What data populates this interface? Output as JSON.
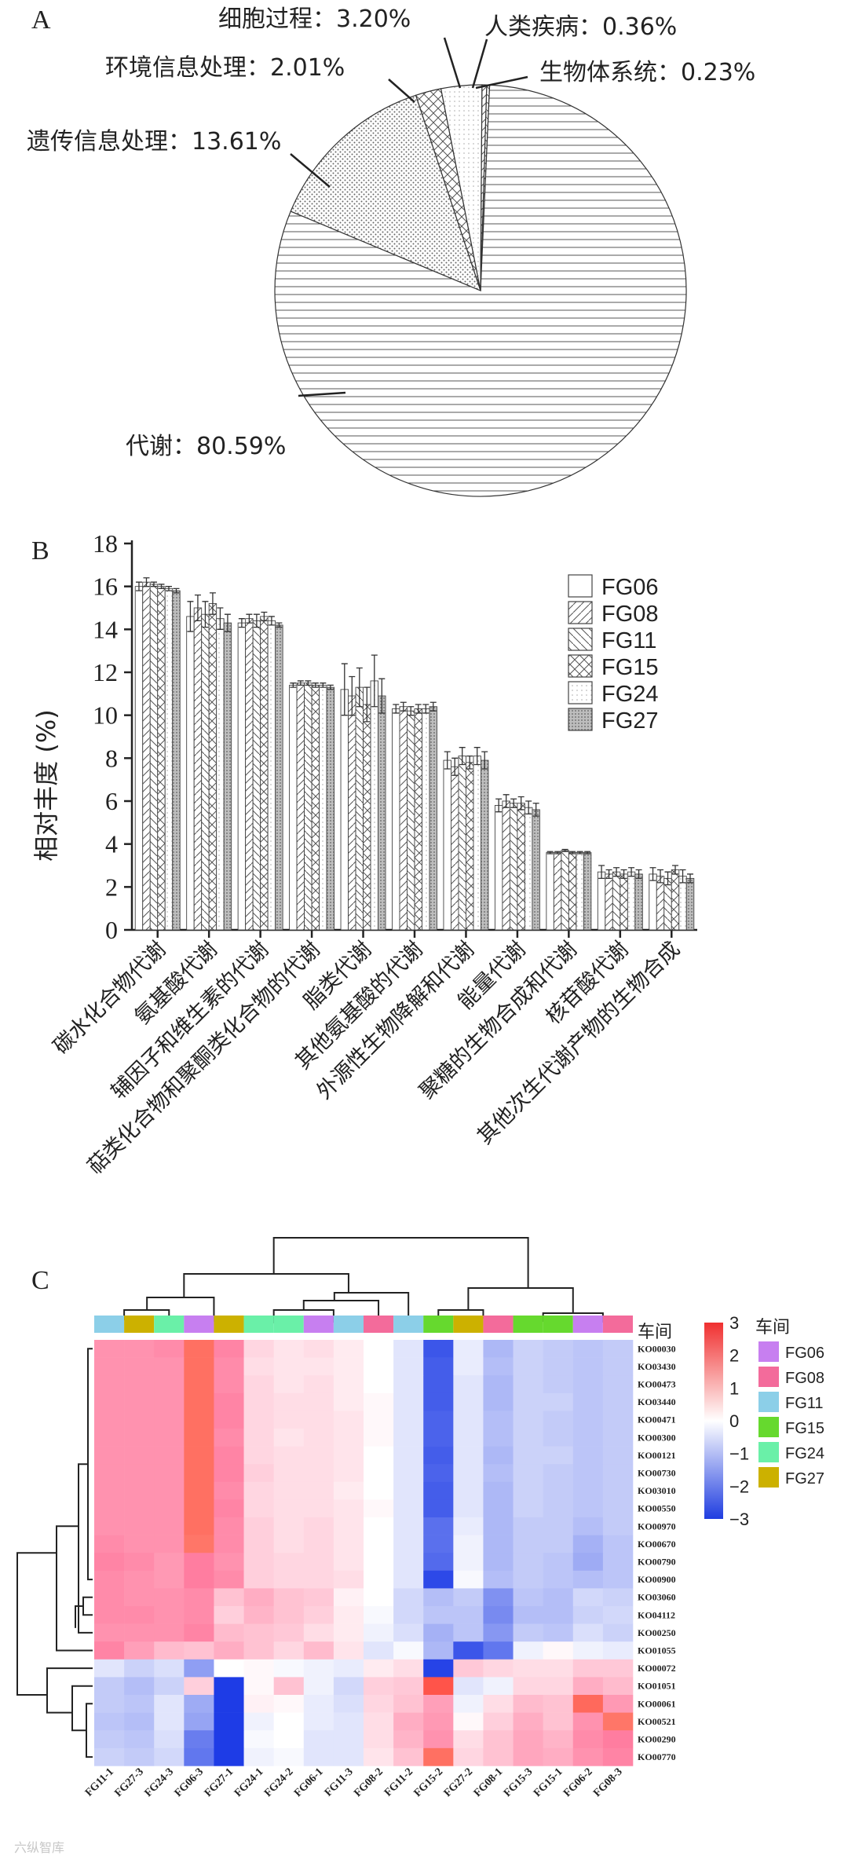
{
  "panels": {
    "a_label": "A",
    "b_label": "B",
    "c_label": "C"
  },
  "chart_data": [
    {
      "type": "pie",
      "labels": [
        "代谢",
        "遗传信息处理",
        "环境信息处理",
        "细胞过程",
        "人类疾病",
        "生物体系统"
      ],
      "values": [
        80.59,
        13.61,
        2.01,
        3.2,
        0.36,
        0.23
      ],
      "display_labels": [
        "代谢：80.59%",
        "遗传信息处理：13.61%",
        "环境信息处理：2.01%",
        "细胞过程：3.20%",
        "人类疾病：0.36%",
        "生物体系统：0.23%"
      ]
    },
    {
      "type": "bar",
      "categories": [
        "碳水化合物代谢",
        "氨基酸代谢",
        "辅因子和维生素的代谢",
        "萜类化合物和聚酮类化合物的代谢",
        "脂类代谢",
        "其他氨基酸的代谢",
        "外源性生物降解和代谢",
        "能量代谢",
        "聚糖的生物合成和代谢",
        "核苷酸代谢",
        "其他次生代谢产物的生物合成"
      ],
      "series": [
        {
          "name": "FG06",
          "values": [
            16.0,
            14.6,
            14.3,
            11.4,
            11.2,
            10.3,
            7.9,
            5.8,
            3.6,
            2.7,
            2.6
          ]
        },
        {
          "name": "FG08",
          "values": [
            16.2,
            15.0,
            14.5,
            11.5,
            10.9,
            10.4,
            7.6,
            6.0,
            3.6,
            2.6,
            2.5
          ]
        },
        {
          "name": "FG11",
          "values": [
            16.1,
            14.7,
            14.4,
            11.5,
            11.3,
            10.2,
            8.1,
            5.9,
            3.7,
            2.7,
            2.4
          ]
        },
        {
          "name": "FG15",
          "values": [
            16.0,
            15.2,
            14.6,
            11.4,
            10.5,
            10.3,
            7.8,
            5.9,
            3.6,
            2.6,
            2.8
          ]
        },
        {
          "name": "FG24",
          "values": [
            15.9,
            14.5,
            14.4,
            11.4,
            11.6,
            10.3,
            8.1,
            5.7,
            3.6,
            2.7,
            2.5
          ]
        },
        {
          "name": "FG27",
          "values": [
            15.8,
            14.3,
            14.2,
            11.3,
            10.9,
            10.4,
            7.9,
            5.6,
            3.6,
            2.6,
            2.4
          ]
        }
      ],
      "errors": [
        [
          0.2,
          0.7,
          0.2,
          0.1,
          1.2,
          0.2,
          0.4,
          0.3,
          0.05,
          0.3,
          0.3
        ],
        [
          0.2,
          0.6,
          0.2,
          0.1,
          0.9,
          0.2,
          0.4,
          0.3,
          0.05,
          0.2,
          0.3
        ],
        [
          0.1,
          0.6,
          0.3,
          0.1,
          0.9,
          0.2,
          0.4,
          0.2,
          0.05,
          0.2,
          0.3
        ],
        [
          0.1,
          0.5,
          0.2,
          0.1,
          0.8,
          0.2,
          0.3,
          0.3,
          0.05,
          0.2,
          0.2
        ],
        [
          0.1,
          0.5,
          0.2,
          0.1,
          1.2,
          0.2,
          0.4,
          0.3,
          0.05,
          0.2,
          0.3
        ],
        [
          0.1,
          0.4,
          0.1,
          0.1,
          0.8,
          0.2,
          0.4,
          0.3,
          0.05,
          0.2,
          0.2
        ]
      ],
      "ylabel": "相对丰度 (%)",
      "ylim": [
        0,
        18
      ],
      "yticks": [
        "0",
        "2",
        "4",
        "6",
        "8",
        "10",
        "12",
        "14",
        "16",
        "18"
      ],
      "legend": [
        "FG06",
        "FG08",
        "FG11",
        "FG15",
        "FG24",
        "FG27"
      ]
    },
    {
      "type": "heatmap",
      "samples": [
        "FG11-1",
        "FG27-3",
        "FG24-3",
        "FG06-3",
        "FG27-1",
        "FG24-1",
        "FG24-2",
        "FG06-1",
        "FG11-3",
        "FG08-2",
        "FG11-2",
        "FG15-2",
        "FG27-2",
        "FG08-1",
        "FG15-3",
        "FG15-1",
        "FG06-2",
        "FG08-3"
      ],
      "sample_groups": [
        "FG11",
        "FG27",
        "FG24",
        "FG06",
        "FG27",
        "FG24",
        "FG24",
        "FG06",
        "FG11",
        "FG08",
        "FG11",
        "FG15",
        "FG27",
        "FG08",
        "FG15",
        "FG15",
        "FG06",
        "FG08"
      ],
      "rows": [
        "KO00030",
        "KO03430",
        "KO00473",
        "KO03440",
        "KO00471",
        "KO00300",
        "KO00121",
        "KO00730",
        "KO03010",
        "KO00550",
        "KO00970",
        "KO00670",
        "KO00790",
        "KO00900",
        "KO03060",
        "KO04112",
        "KO00250",
        "KO01055",
        "KO00072",
        "KO01051",
        "KO00061",
        "KO00521",
        "KO00290",
        "KO00770"
      ],
      "values": [
        [
          1.6,
          1.6,
          1.7,
          2.1,
          1.8,
          0.6,
          0.4,
          0.5,
          0.3,
          0.0,
          -0.4,
          -2.6,
          -0.3,
          -1.1,
          -0.7,
          -0.8,
          -0.9,
          -0.8
        ],
        [
          1.6,
          1.6,
          1.6,
          2.1,
          1.7,
          0.5,
          0.4,
          0.4,
          0.3,
          0.0,
          -0.4,
          -2.5,
          -0.3,
          -1.0,
          -0.7,
          -0.8,
          -0.9,
          -0.8
        ],
        [
          1.6,
          1.6,
          1.6,
          2.1,
          1.7,
          0.6,
          0.4,
          0.5,
          0.3,
          0.0,
          -0.4,
          -2.5,
          -0.4,
          -1.1,
          -0.7,
          -0.8,
          -0.9,
          -0.8
        ],
        [
          1.6,
          1.6,
          1.6,
          2.1,
          1.8,
          0.6,
          0.5,
          0.5,
          0.3,
          0.1,
          -0.4,
          -2.5,
          -0.4,
          -1.1,
          -0.7,
          -0.7,
          -0.9,
          -0.8
        ],
        [
          1.6,
          1.6,
          1.6,
          2.1,
          1.8,
          0.6,
          0.5,
          0.5,
          0.4,
          0.1,
          -0.4,
          -2.4,
          -0.4,
          -1.0,
          -0.7,
          -0.8,
          -0.9,
          -0.8
        ],
        [
          1.6,
          1.6,
          1.6,
          2.1,
          1.7,
          0.6,
          0.4,
          0.5,
          0.4,
          0.1,
          -0.4,
          -2.4,
          -0.4,
          -1.0,
          -0.7,
          -0.8,
          -0.9,
          -0.8
        ],
        [
          1.6,
          1.6,
          1.6,
          2.1,
          1.8,
          0.6,
          0.5,
          0.5,
          0.4,
          0.0,
          -0.4,
          -2.5,
          -0.4,
          -1.1,
          -0.7,
          -0.7,
          -0.9,
          -0.8
        ],
        [
          1.6,
          1.6,
          1.6,
          2.1,
          1.8,
          0.7,
          0.5,
          0.5,
          0.4,
          0.0,
          -0.4,
          -2.4,
          -0.4,
          -1.0,
          -0.7,
          -0.8,
          -0.9,
          -0.8
        ],
        [
          1.6,
          1.6,
          1.6,
          2.1,
          1.7,
          0.6,
          0.5,
          0.5,
          0.3,
          0.0,
          -0.4,
          -2.5,
          -0.4,
          -1.1,
          -0.7,
          -0.8,
          -0.9,
          -0.8
        ],
        [
          1.6,
          1.6,
          1.6,
          2.1,
          1.8,
          0.6,
          0.5,
          0.5,
          0.4,
          0.1,
          -0.4,
          -2.5,
          -0.4,
          -1.1,
          -0.7,
          -0.8,
          -0.9,
          -0.8
        ],
        [
          1.6,
          1.6,
          1.6,
          2.1,
          1.7,
          0.7,
          0.5,
          0.6,
          0.4,
          0.0,
          -0.4,
          -2.2,
          -0.3,
          -1.1,
          -0.8,
          -0.8,
          -1.0,
          -0.8
        ],
        [
          1.7,
          1.6,
          1.6,
          2.0,
          1.7,
          0.7,
          0.5,
          0.6,
          0.4,
          0.0,
          -0.4,
          -2.2,
          -0.2,
          -1.1,
          -0.8,
          -0.8,
          -1.2,
          -0.9
        ],
        [
          1.8,
          1.7,
          1.5,
          1.9,
          1.6,
          0.7,
          0.6,
          0.6,
          0.4,
          0.0,
          -0.4,
          -2.3,
          -0.2,
          -1.1,
          -0.8,
          -0.9,
          -1.3,
          -0.9
        ],
        [
          1.7,
          1.6,
          1.5,
          1.9,
          1.7,
          0.7,
          0.6,
          0.6,
          0.5,
          0.0,
          -0.4,
          -2.8,
          -0.1,
          -1.0,
          -0.8,
          -0.9,
          -1.0,
          -0.9
        ],
        [
          1.7,
          1.6,
          1.6,
          1.7,
          0.9,
          1.2,
          0.9,
          0.8,
          0.2,
          0.0,
          -0.6,
          -1.0,
          -0.8,
          -1.7,
          -0.9,
          -1.0,
          -0.6,
          -0.7
        ],
        [
          1.7,
          1.7,
          1.6,
          1.7,
          0.7,
          1.1,
          0.9,
          0.7,
          0.3,
          -0.1,
          -0.6,
          -0.9,
          -0.9,
          -1.8,
          -1.0,
          -1.0,
          -0.7,
          -0.6
        ],
        [
          1.6,
          1.6,
          1.6,
          1.8,
          1.0,
          0.9,
          0.8,
          0.5,
          0.3,
          -0.2,
          -0.5,
          -1.2,
          -0.9,
          -1.6,
          -0.8,
          -0.9,
          -0.5,
          -0.7
        ],
        [
          1.8,
          1.4,
          1.0,
          0.9,
          1.2,
          0.9,
          0.6,
          1.0,
          0.4,
          -0.4,
          -0.1,
          -1.1,
          -2.6,
          -2.1,
          -0.2,
          0.1,
          -0.2,
          -0.3
        ],
        [
          -0.4,
          -0.7,
          -0.5,
          -1.5,
          0.0,
          0.1,
          -0.1,
          -0.2,
          -0.3,
          0.3,
          0.5,
          -2.9,
          0.8,
          0.6,
          0.5,
          0.5,
          0.8,
          0.8
        ],
        [
          -0.8,
          -1.0,
          -0.7,
          0.7,
          -3.0,
          0.1,
          0.9,
          -0.2,
          -0.6,
          0.7,
          0.8,
          2.5,
          -0.4,
          -0.2,
          0.6,
          0.6,
          1.2,
          1.0
        ],
        [
          -0.8,
          -0.9,
          -0.4,
          -1.3,
          -3.0,
          0.2,
          0.1,
          -0.3,
          -0.5,
          0.6,
          0.9,
          1.4,
          -0.2,
          0.5,
          1.0,
          0.9,
          2.2,
          1.5
        ],
        [
          -0.9,
          -1.0,
          -0.4,
          -1.4,
          -3.0,
          -0.2,
          0.0,
          -0.3,
          -0.4,
          0.5,
          1.2,
          1.5,
          0.1,
          0.7,
          1.2,
          0.9,
          1.6,
          2.0
        ],
        [
          -0.8,
          -0.9,
          -0.5,
          -2.0,
          -3.0,
          -0.1,
          0.0,
          -0.4,
          -0.4,
          0.5,
          1.1,
          1.6,
          0.5,
          0.9,
          1.3,
          1.1,
          1.7,
          1.9
        ],
        [
          -0.7,
          -0.8,
          -0.6,
          -2.1,
          -3.0,
          -0.2,
          -0.1,
          -0.4,
          -0.4,
          0.4,
          0.9,
          2.1,
          0.6,
          0.9,
          1.3,
          1.2,
          1.6,
          1.8
        ]
      ],
      "scale_ticks": [
        "3",
        "2",
        "1",
        "0",
        "−1",
        "−2",
        "−3"
      ],
      "legend_title": "车间",
      "annotation_title": "车间",
      "legend": [
        "FG06",
        "FG08",
        "FG11",
        "FG15",
        "FG24",
        "FG27"
      ]
    }
  ],
  "group_colors": {
    "FG06": "#c77ff0",
    "FG08": "#f36b9b",
    "FG11": "#8ccfe8",
    "FG15": "#66d92e",
    "FG24": "#6af0a8",
    "FG27": "#ccb100"
  },
  "watermark": "六纵智库"
}
